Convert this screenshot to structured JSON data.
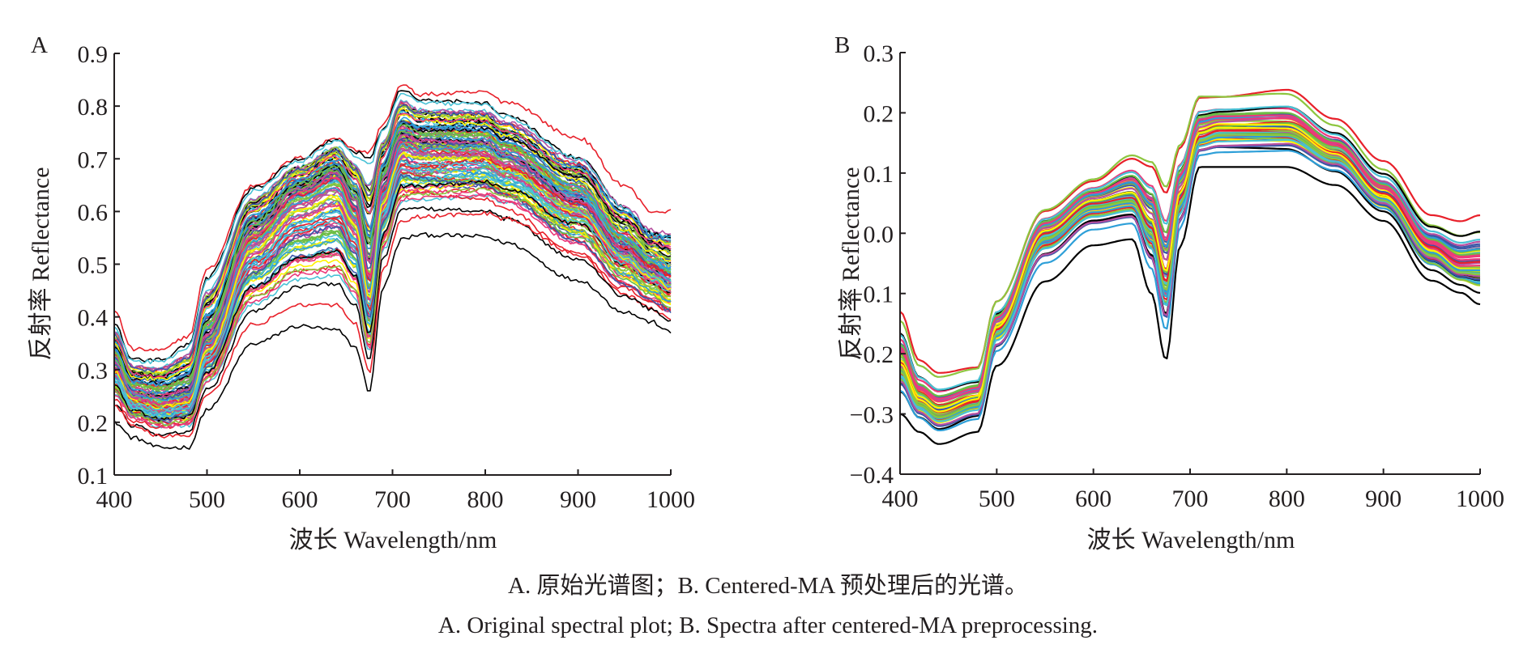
{
  "figure": {
    "caption_zh": "A. 原始光谱图；B. Centered-MA 预处理后的光谱。",
    "caption_en": "A. Original spectral plot; B. Spectra after centered-MA preprocessing."
  },
  "line_palette": [
    "#000000",
    "#e8202a",
    "#3a57a7",
    "#6cbd45",
    "#fff200",
    "#b64fa0",
    "#49c2d6",
    "#ec3a7a",
    "#2d9fd8",
    "#8dc63f"
  ],
  "chart_data": [
    {
      "panel": "A",
      "type": "line",
      "title": "",
      "xlabel": "波长 Wavelength/nm",
      "ylabel": "反射率 Reflectance",
      "xlim": [
        400,
        1000
      ],
      "ylim": [
        0.1,
        0.9
      ],
      "xticks": [
        400,
        500,
        600,
        700,
        800,
        900,
        1000
      ],
      "xtick_labels": [
        "400",
        "500",
        "600",
        "700",
        "800",
        "900",
        "1000"
      ],
      "yticks": [
        0.1,
        0.2,
        0.3,
        0.4,
        0.5,
        0.6,
        0.7,
        0.8,
        0.9
      ],
      "ytick_labels": [
        "0.1",
        "0.2",
        "0.3",
        "0.4",
        "0.5",
        "0.6",
        "0.7",
        "0.8",
        "0.9"
      ],
      "grid": false,
      "legend": "none",
      "series_count_approx": 120,
      "noise": 0.004,
      "envelope": {
        "x": [
          400,
          420,
          450,
          480,
          500,
          550,
          600,
          640,
          660,
          675,
          690,
          710,
          730,
          800,
          820,
          900,
          950,
          980,
          1000
        ],
        "lower": [
          0.2,
          0.17,
          0.15,
          0.15,
          0.22,
          0.34,
          0.37,
          0.36,
          0.33,
          0.25,
          0.45,
          0.54,
          0.55,
          0.55,
          0.54,
          0.47,
          0.41,
          0.39,
          0.37
        ],
        "median": [
          0.31,
          0.25,
          0.24,
          0.25,
          0.35,
          0.55,
          0.63,
          0.66,
          0.6,
          0.46,
          0.64,
          0.73,
          0.72,
          0.72,
          0.7,
          0.62,
          0.53,
          0.49,
          0.47
        ],
        "upper": [
          0.41,
          0.34,
          0.34,
          0.37,
          0.5,
          0.66,
          0.71,
          0.75,
          0.73,
          0.74,
          0.78,
          0.85,
          0.83,
          0.83,
          0.81,
          0.74,
          0.65,
          0.6,
          0.6
        ]
      }
    },
    {
      "panel": "B",
      "type": "line",
      "title": "",
      "xlabel": "波长 Wavelength/nm",
      "ylabel": "反射率 Reflectance",
      "xlim": [
        400,
        1000
      ],
      "ylim": [
        -0.4,
        0.3
      ],
      "xticks": [
        400,
        500,
        600,
        700,
        800,
        900,
        1000
      ],
      "xtick_labels": [
        "400",
        "500",
        "600",
        "700",
        "800",
        "900",
        "1000"
      ],
      "yticks": [
        -0.4,
        -0.3,
        -0.2,
        -0.1,
        0.0,
        0.1,
        0.2,
        0.3
      ],
      "ytick_labels": [
        "−0.4",
        "−0.3",
        "−0.2",
        "−0.1",
        "0.0",
        "0.1",
        "0.2",
        "0.3"
      ],
      "grid": false,
      "legend": "none",
      "series_count_approx": 60,
      "noise": 0,
      "envelope": {
        "x": [
          400,
          420,
          440,
          480,
          500,
          550,
          600,
          640,
          660,
          675,
          690,
          710,
          730,
          800,
          850,
          900,
          950,
          980,
          1000
        ],
        "lower": [
          -0.3,
          -0.33,
          -0.35,
          -0.33,
          -0.22,
          -0.08,
          -0.02,
          -0.01,
          -0.1,
          -0.21,
          -0.02,
          0.11,
          0.11,
          0.11,
          0.08,
          0.02,
          -0.08,
          -0.1,
          -0.12
        ],
        "median": [
          -0.22,
          -0.28,
          -0.3,
          -0.28,
          -0.16,
          0.0,
          0.05,
          0.06,
          0.01,
          -0.08,
          0.06,
          0.16,
          0.17,
          0.17,
          0.13,
          0.06,
          -0.03,
          -0.06,
          -0.06
        ],
        "upper": [
          -0.13,
          -0.21,
          -0.23,
          -0.22,
          -0.11,
          0.04,
          0.09,
          0.13,
          0.12,
          0.08,
          0.15,
          0.23,
          0.23,
          0.24,
          0.19,
          0.12,
          0.03,
          0.02,
          0.03
        ]
      }
    }
  ],
  "panels": {
    "A": {
      "label": "A"
    },
    "B": {
      "label": "B"
    }
  }
}
